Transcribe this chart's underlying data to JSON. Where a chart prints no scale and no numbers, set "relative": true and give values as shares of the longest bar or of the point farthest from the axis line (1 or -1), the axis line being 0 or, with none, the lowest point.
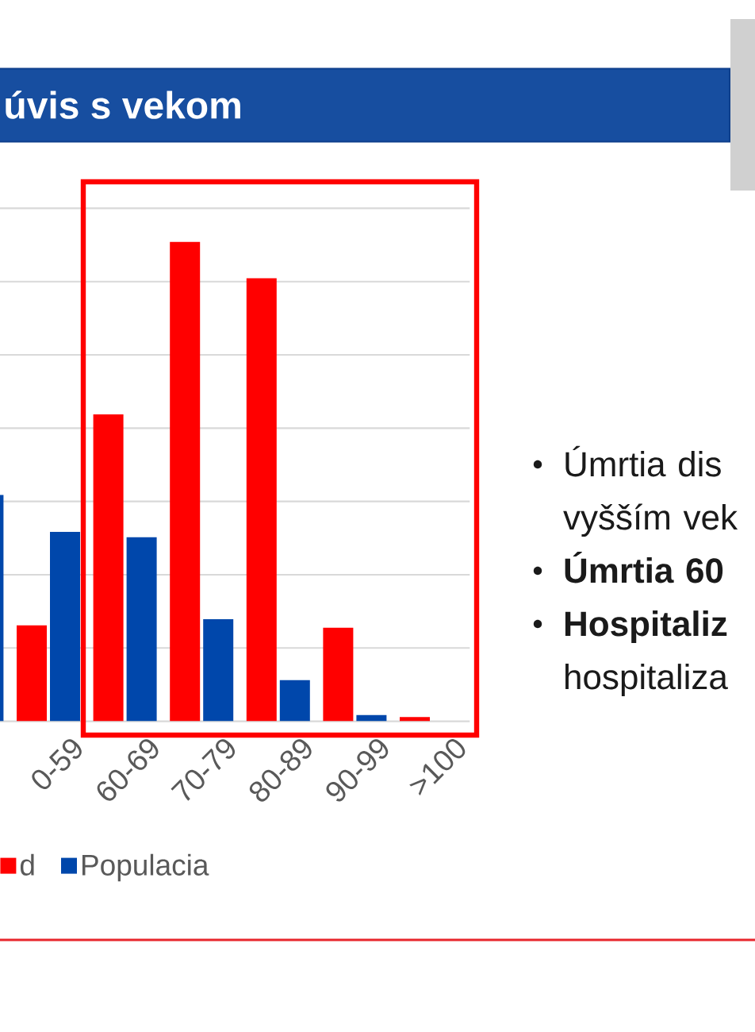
{
  "chart_data": {
    "type": "bar",
    "title": "úvis s vekom",
    "categories": [
      null,
      "0-59",
      "60-69",
      "70-79",
      "80-89",
      "90-99",
      ">100"
    ],
    "series": [
      {
        "name": "d",
        "color": "#ff0000",
        "values": [
          null,
          0.2,
          0.64,
          1,
          0.924,
          0.195,
          0.009
        ]
      },
      {
        "name": "Populacia",
        "color": "#0047ab",
        "values": [
          0.472,
          0.395,
          0.384,
          0.213,
          0.086,
          0.013,
          null
        ]
      }
    ],
    "relative": true,
    "grid": "y",
    "legend": "bottom",
    "annotations": [
      "Úmrtia dis vyšším vek",
      "**Úmrtia 60**",
      "**Hospitaliz** hospitaliza"
    ]
  }
}
